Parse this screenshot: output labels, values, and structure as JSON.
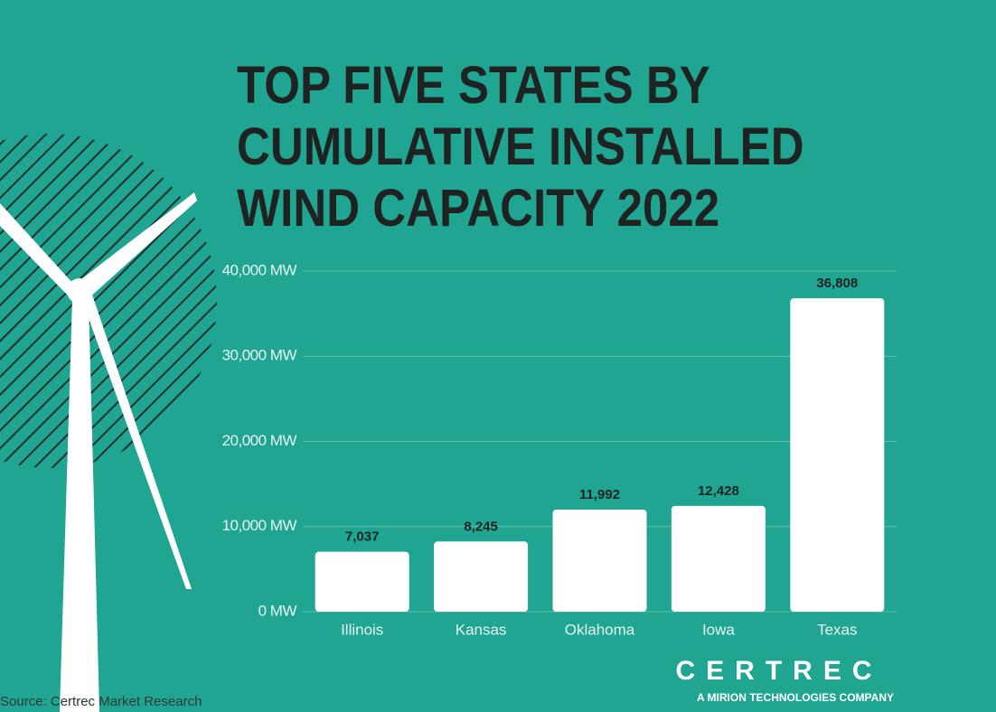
{
  "chart_data": {
    "type": "bar",
    "title": "TOP FIVE STATES BY CUMULATIVE INSTALLED WIND CAPACITY 2022",
    "categories": [
      "Illinois",
      "Kansas",
      "Oklahoma",
      "Iowa",
      "Texas"
    ],
    "values": [
      7037,
      8245,
      11992,
      12428,
      36808
    ],
    "value_labels": [
      "7,037",
      "8,245",
      "11,992",
      "12,428",
      "36,808"
    ],
    "color": "#ffffff",
    "ylim": [
      0,
      40000
    ],
    "yticks": [
      {
        "value": 0,
        "label": "0 MW"
      },
      {
        "value": 10000,
        "label": "10,000 MW"
      },
      {
        "value": 20000,
        "label": "20,000 MW"
      },
      {
        "value": 30000,
        "label": "30,000 MW"
      },
      {
        "value": 40000,
        "label": "40,000 MW"
      }
    ],
    "grid": true,
    "source": "Source: Certrec Market Research"
  },
  "logo": {
    "name": "CERTREC",
    "tagline": "A MIRION TECHNOLOGIES COMPANY"
  }
}
